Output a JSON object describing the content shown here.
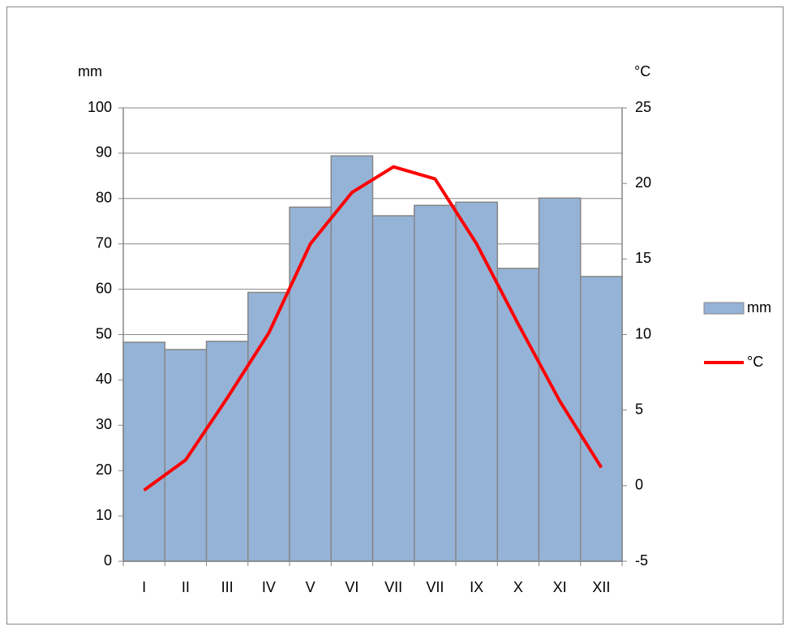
{
  "chart_data": {
    "type": "bar",
    "categories": [
      "I",
      "II",
      "III",
      "IV",
      "V",
      "VI",
      "VII",
      "VII",
      "IX",
      "X",
      "XI",
      "XII"
    ],
    "series": [
      {
        "name": "mm",
        "type": "bar",
        "color": "#95b3d7",
        "values": [
          48.3,
          46.7,
          48.5,
          59.3,
          78.1,
          89.4,
          76.2,
          78.5,
          79.2,
          64.6,
          80.1,
          62.8
        ]
      },
      {
        "name": "°C",
        "type": "line",
        "axis": "y2",
        "color": "#ff0000",
        "values": [
          -0.3,
          1.7,
          5.8,
          10.1,
          16.0,
          19.4,
          21.1,
          20.3,
          16.0,
          10.7,
          5.6,
          1.2
        ]
      }
    ],
    "y_label": "mm",
    "y2_label": "°C",
    "ylim": [
      0,
      100
    ],
    "yticks": [
      0,
      10,
      20,
      30,
      40,
      50,
      60,
      70,
      80,
      90,
      100
    ],
    "y2lim": [
      -5,
      25
    ],
    "y2ticks": [
      -5,
      0,
      5,
      10,
      15,
      20,
      25
    ],
    "grid": true,
    "legend": "right"
  }
}
